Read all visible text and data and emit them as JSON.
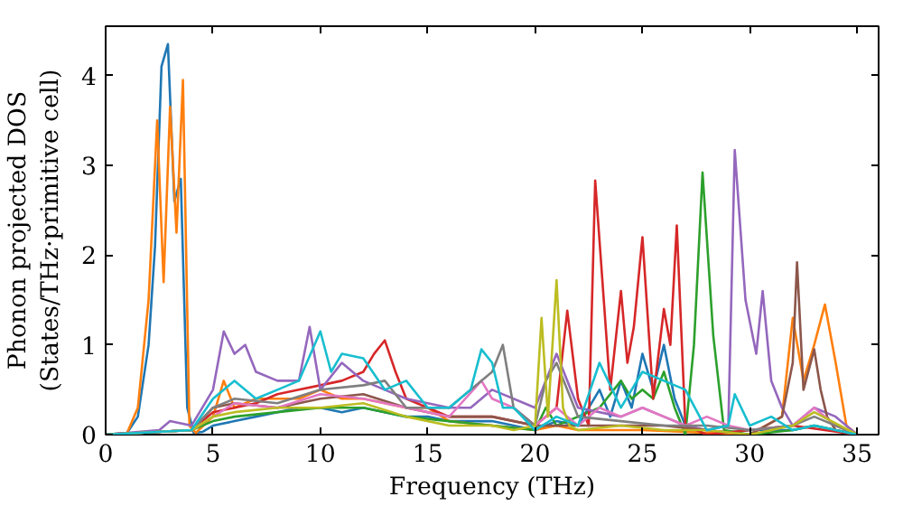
{
  "chart_data": {
    "type": "line",
    "xlabel": "Frequency (THz)",
    "ylabel": "Phonon projected DOS\n(States/THz·primitive cell)",
    "xlim": [
      0,
      36
    ],
    "ylim": [
      0,
      4.55
    ],
    "xticks": [
      0,
      5,
      10,
      15,
      20,
      25,
      30,
      35
    ],
    "yticks": [
      0,
      1,
      2,
      3,
      4
    ],
    "grid": false,
    "marker": "none",
    "line_style": "solid",
    "series": [
      {
        "color": "#1f77b4",
        "x": [
          0,
          1,
          1.5,
          2,
          2.3,
          2.6,
          2.9,
          3.2,
          3.5,
          3.8,
          4.1,
          4.5,
          5,
          6,
          7,
          8,
          9,
          10,
          11,
          12,
          13,
          14,
          15,
          16,
          17,
          18,
          19,
          20,
          21,
          22,
          23,
          23.5,
          24,
          24.5,
          25,
          25.5,
          26,
          26.5,
          27,
          28,
          30,
          32,
          33,
          34,
          35
        ],
        "values": [
          0,
          0.02,
          0.2,
          1.0,
          2.1,
          4.1,
          4.35,
          2.6,
          2.85,
          0.3,
          0.02,
          0.03,
          0.1,
          0.15,
          0.2,
          0.25,
          0.3,
          0.3,
          0.25,
          0.3,
          0.25,
          0.2,
          0.2,
          0.15,
          0.15,
          0.15,
          0.1,
          0.05,
          0.15,
          0.1,
          0.5,
          0.2,
          0.6,
          0.3,
          0.9,
          0.5,
          1.0,
          0.4,
          0.1,
          0,
          0.05,
          0.05,
          0.1,
          0.05,
          0
        ]
      },
      {
        "color": "#ff7f0e",
        "x": [
          0,
          1,
          1.5,
          2,
          2.4,
          2.7,
          3.0,
          3.3,
          3.6,
          3.9,
          4.2,
          5,
          5.5,
          6,
          7,
          8,
          9,
          10,
          11,
          12,
          13,
          14,
          15,
          16,
          18,
          20,
          21,
          22,
          25,
          30,
          31.5,
          32,
          32.5,
          33,
          33.5,
          34,
          34.5,
          35
        ],
        "values": [
          0,
          0.02,
          0.3,
          1.5,
          3.5,
          1.7,
          3.65,
          2.25,
          3.95,
          0.1,
          0.02,
          0.2,
          0.6,
          0.3,
          0.4,
          0.4,
          0.4,
          0.5,
          0.4,
          0.4,
          0.35,
          0.3,
          0.3,
          0.15,
          0.1,
          0.05,
          0.1,
          0.05,
          0.05,
          0,
          0.2,
          1.3,
          0.6,
          1.0,
          1.45,
          0.8,
          0.1,
          0
        ]
      },
      {
        "color": "#2ca02c",
        "x": [
          0,
          4,
          5,
          6,
          8,
          10,
          12,
          14,
          16,
          18,
          20,
          20.5,
          21,
          22,
          23,
          24,
          24.5,
          25,
          25.5,
          26,
          26.5,
          27,
          27.4,
          27.8,
          28.3,
          28.8,
          30,
          32,
          33,
          35
        ],
        "values": [
          0,
          0.05,
          0.15,
          0.2,
          0.25,
          0.3,
          0.3,
          0.2,
          0.15,
          0.1,
          0.05,
          0.3,
          0.1,
          0.2,
          0.3,
          0.6,
          0.4,
          0.5,
          0.4,
          0.7,
          0.3,
          0,
          1.0,
          2.92,
          1.1,
          0.05,
          0,
          0.05,
          0.1,
          0
        ]
      },
      {
        "color": "#d62728",
        "x": [
          0,
          4,
          5,
          6,
          7,
          8,
          9,
          10,
          11,
          12,
          12.5,
          13,
          13.5,
          14,
          15,
          16,
          18,
          20,
          21,
          21.5,
          22,
          22.5,
          22.8,
          23.5,
          24,
          24.3,
          24.6,
          25,
          25.5,
          26,
          26.3,
          26.6,
          27,
          28,
          30,
          32,
          35
        ],
        "values": [
          0,
          0.05,
          0.25,
          0.3,
          0.35,
          0.45,
          0.5,
          0.55,
          0.6,
          0.7,
          0.9,
          1.05,
          0.7,
          0.4,
          0.3,
          0.2,
          0.2,
          0.1,
          0.3,
          1.38,
          0.4,
          0.1,
          2.83,
          0.5,
          1.6,
          0.8,
          1.2,
          2.2,
          0.4,
          1.4,
          1.0,
          2.33,
          0.1,
          0,
          0.05,
          0.1,
          0
        ]
      },
      {
        "color": "#9467bd",
        "x": [
          0,
          2.5,
          3,
          4,
          5,
          5.5,
          6,
          6.5,
          7,
          8,
          9,
          9.5,
          10,
          11,
          12,
          13,
          14,
          16,
          17,
          18,
          20,
          21,
          22,
          24,
          25,
          26,
          27,
          28,
          29,
          29.3,
          29.8,
          30.3,
          30.6,
          31,
          31.5,
          32,
          33,
          34,
          35
        ],
        "values": [
          0,
          0.05,
          0.15,
          0.1,
          0.5,
          1.15,
          0.9,
          1.0,
          0.7,
          0.6,
          0.6,
          1.2,
          0.5,
          0.8,
          0.6,
          0.5,
          0.4,
          0.3,
          0.3,
          0.5,
          0.3,
          0.9,
          0.3,
          0.2,
          0.3,
          0.2,
          0.1,
          0.05,
          0.1,
          3.17,
          1.5,
          0.9,
          1.6,
          0.6,
          0.3,
          0.1,
          0.3,
          0.2,
          0
        ]
      },
      {
        "color": "#8c564b",
        "x": [
          0,
          4,
          5,
          6,
          8,
          10,
          12,
          14,
          16,
          18,
          20,
          22,
          24,
          26,
          28,
          30,
          31.5,
          32,
          32.2,
          32.5,
          33,
          33.3,
          33.6,
          34,
          35
        ],
        "values": [
          0,
          0.05,
          0.3,
          0.35,
          0.3,
          0.4,
          0.45,
          0.3,
          0.2,
          0.2,
          0.1,
          0.1,
          0.1,
          0.1,
          0.05,
          0,
          0.2,
          0.8,
          1.92,
          0.5,
          0.95,
          0.5,
          0.2,
          0.05,
          0
        ]
      },
      {
        "color": "#e377c2",
        "x": [
          0,
          4,
          5,
          6,
          8,
          10,
          12,
          14,
          16,
          17.5,
          18,
          19,
          20,
          21,
          22,
          23,
          24,
          25,
          26,
          27,
          28,
          29,
          30,
          32,
          33,
          34,
          35
        ],
        "values": [
          0,
          0.05,
          0.2,
          0.35,
          0.3,
          0.45,
          0.4,
          0.3,
          0.2,
          0.6,
          0.4,
          0.3,
          0.1,
          0.3,
          0.1,
          0.3,
          0.2,
          0.3,
          0.2,
          0.1,
          0.2,
          0.1,
          0.05,
          0.1,
          0.3,
          0.1,
          0
        ]
      },
      {
        "color": "#7f7f7f",
        "x": [
          0,
          4,
          5,
          6,
          8,
          10,
          12,
          13,
          14,
          16,
          18,
          18.5,
          19,
          20,
          20.5,
          21,
          22,
          24,
          26,
          28,
          30,
          32,
          33,
          35
        ],
        "values": [
          0,
          0.05,
          0.3,
          0.4,
          0.35,
          0.5,
          0.55,
          0.6,
          0.3,
          0.3,
          0.7,
          1.0,
          0.3,
          0.1,
          0.6,
          0.8,
          0.2,
          0.15,
          0.1,
          0.1,
          0.05,
          0.1,
          0.2,
          0
        ]
      },
      {
        "color": "#bcbd22",
        "x": [
          0,
          4,
          5,
          6,
          8,
          10,
          12,
          14,
          16,
          18,
          19,
          20,
          20.3,
          20.6,
          21,
          21.3,
          21.6,
          22,
          24,
          26,
          28,
          30,
          32,
          33,
          35
        ],
        "values": [
          0,
          0.05,
          0.2,
          0.25,
          0.3,
          0.3,
          0.35,
          0.2,
          0.1,
          0.1,
          0.05,
          0.1,
          1.3,
          0.2,
          1.72,
          0.3,
          0.1,
          0.05,
          0.1,
          0.05,
          0.05,
          0,
          0.1,
          0.25,
          0
        ]
      },
      {
        "color": "#17becf",
        "x": [
          0,
          4,
          5,
          6,
          7,
          8,
          9,
          10,
          10.5,
          11,
          12,
          13,
          14,
          15,
          16,
          17,
          17.5,
          18,
          18.5,
          19,
          20,
          21,
          22,
          23,
          24,
          25,
          26,
          27,
          28,
          29,
          29.3,
          30,
          31,
          32,
          33,
          35
        ],
        "values": [
          0,
          0.05,
          0.4,
          0.6,
          0.4,
          0.5,
          0.6,
          1.15,
          0.7,
          0.9,
          0.85,
          0.5,
          0.6,
          0.3,
          0.3,
          0.5,
          0.95,
          0.8,
          0.3,
          0.3,
          0.05,
          0.2,
          0.1,
          0.8,
          0.3,
          0.7,
          0.6,
          0.5,
          0.05,
          0.1,
          0.45,
          0.1,
          0.2,
          0.05,
          0.1,
          0
        ]
      }
    ]
  }
}
